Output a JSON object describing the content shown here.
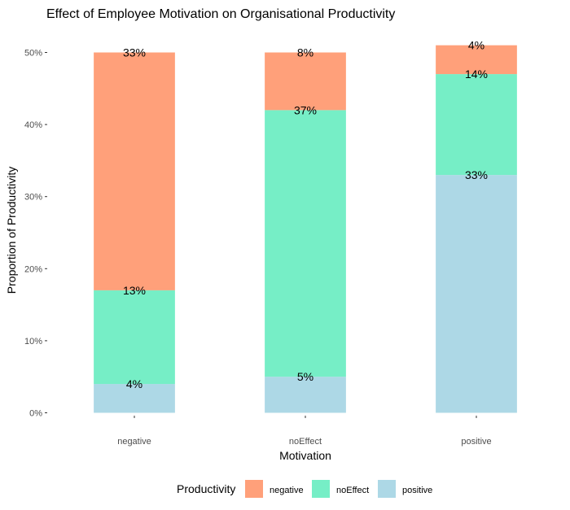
{
  "chart_data": {
    "type": "bar",
    "stacked": true,
    "title": "Effect of Employee Motivation on Organisational Productivity",
    "xlabel": "Motivation",
    "ylabel": "Proportion of Productivity",
    "categories": [
      "negative",
      "noEffect",
      "positive"
    ],
    "ylim": [
      0,
      0.5
    ],
    "yticks": [
      0,
      0.1,
      0.2,
      0.3,
      0.4,
      0.5
    ],
    "ytick_labels": [
      "0%",
      "10%",
      "20%",
      "30%",
      "40%",
      "50%"
    ],
    "grid": false,
    "legend": {
      "title": "Productivity",
      "position": "bottom"
    },
    "series": [
      {
        "name": "positive",
        "color": "#ADD8E6",
        "values": [
          0.04,
          0.05,
          0.33
        ],
        "labels": [
          "4%",
          "5%",
          "33%"
        ]
      },
      {
        "name": "noEffect",
        "color": "#76EEC6",
        "values": [
          0.13,
          0.37,
          0.14
        ],
        "labels": [
          "13%",
          "37%",
          "14%"
        ]
      },
      {
        "name": "negative",
        "color": "#FFA07A",
        "values": [
          0.33,
          0.08,
          0.04
        ],
        "labels": [
          "33%",
          "8%",
          "4%"
        ]
      }
    ],
    "legend_order": [
      "negative",
      "noEffect",
      "positive"
    ]
  }
}
